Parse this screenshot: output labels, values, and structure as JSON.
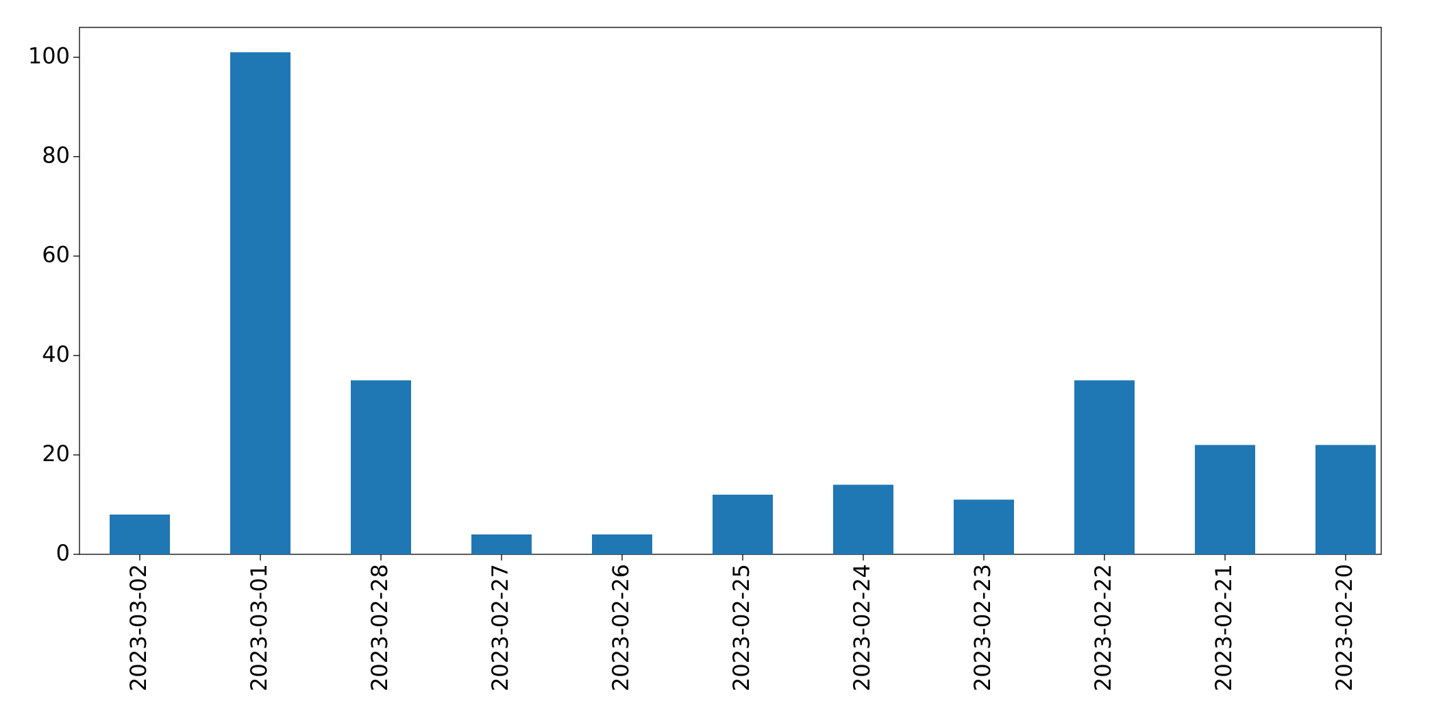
{
  "chart_data": {
    "type": "bar",
    "categories": [
      "2023-03-02",
      "2023-03-01",
      "2023-02-28",
      "2023-02-27",
      "2023-02-26",
      "2023-02-25",
      "2023-02-24",
      "2023-02-23",
      "2023-02-22",
      "2023-02-21",
      "2023-02-20"
    ],
    "values": [
      8,
      101,
      35,
      4,
      4,
      12,
      14,
      11,
      35,
      22,
      22
    ],
    "color": "#1f77b4",
    "ylim": [
      0,
      106
    ],
    "yticks": [
      0,
      20,
      40,
      60,
      80,
      100
    ],
    "grid": false
  }
}
